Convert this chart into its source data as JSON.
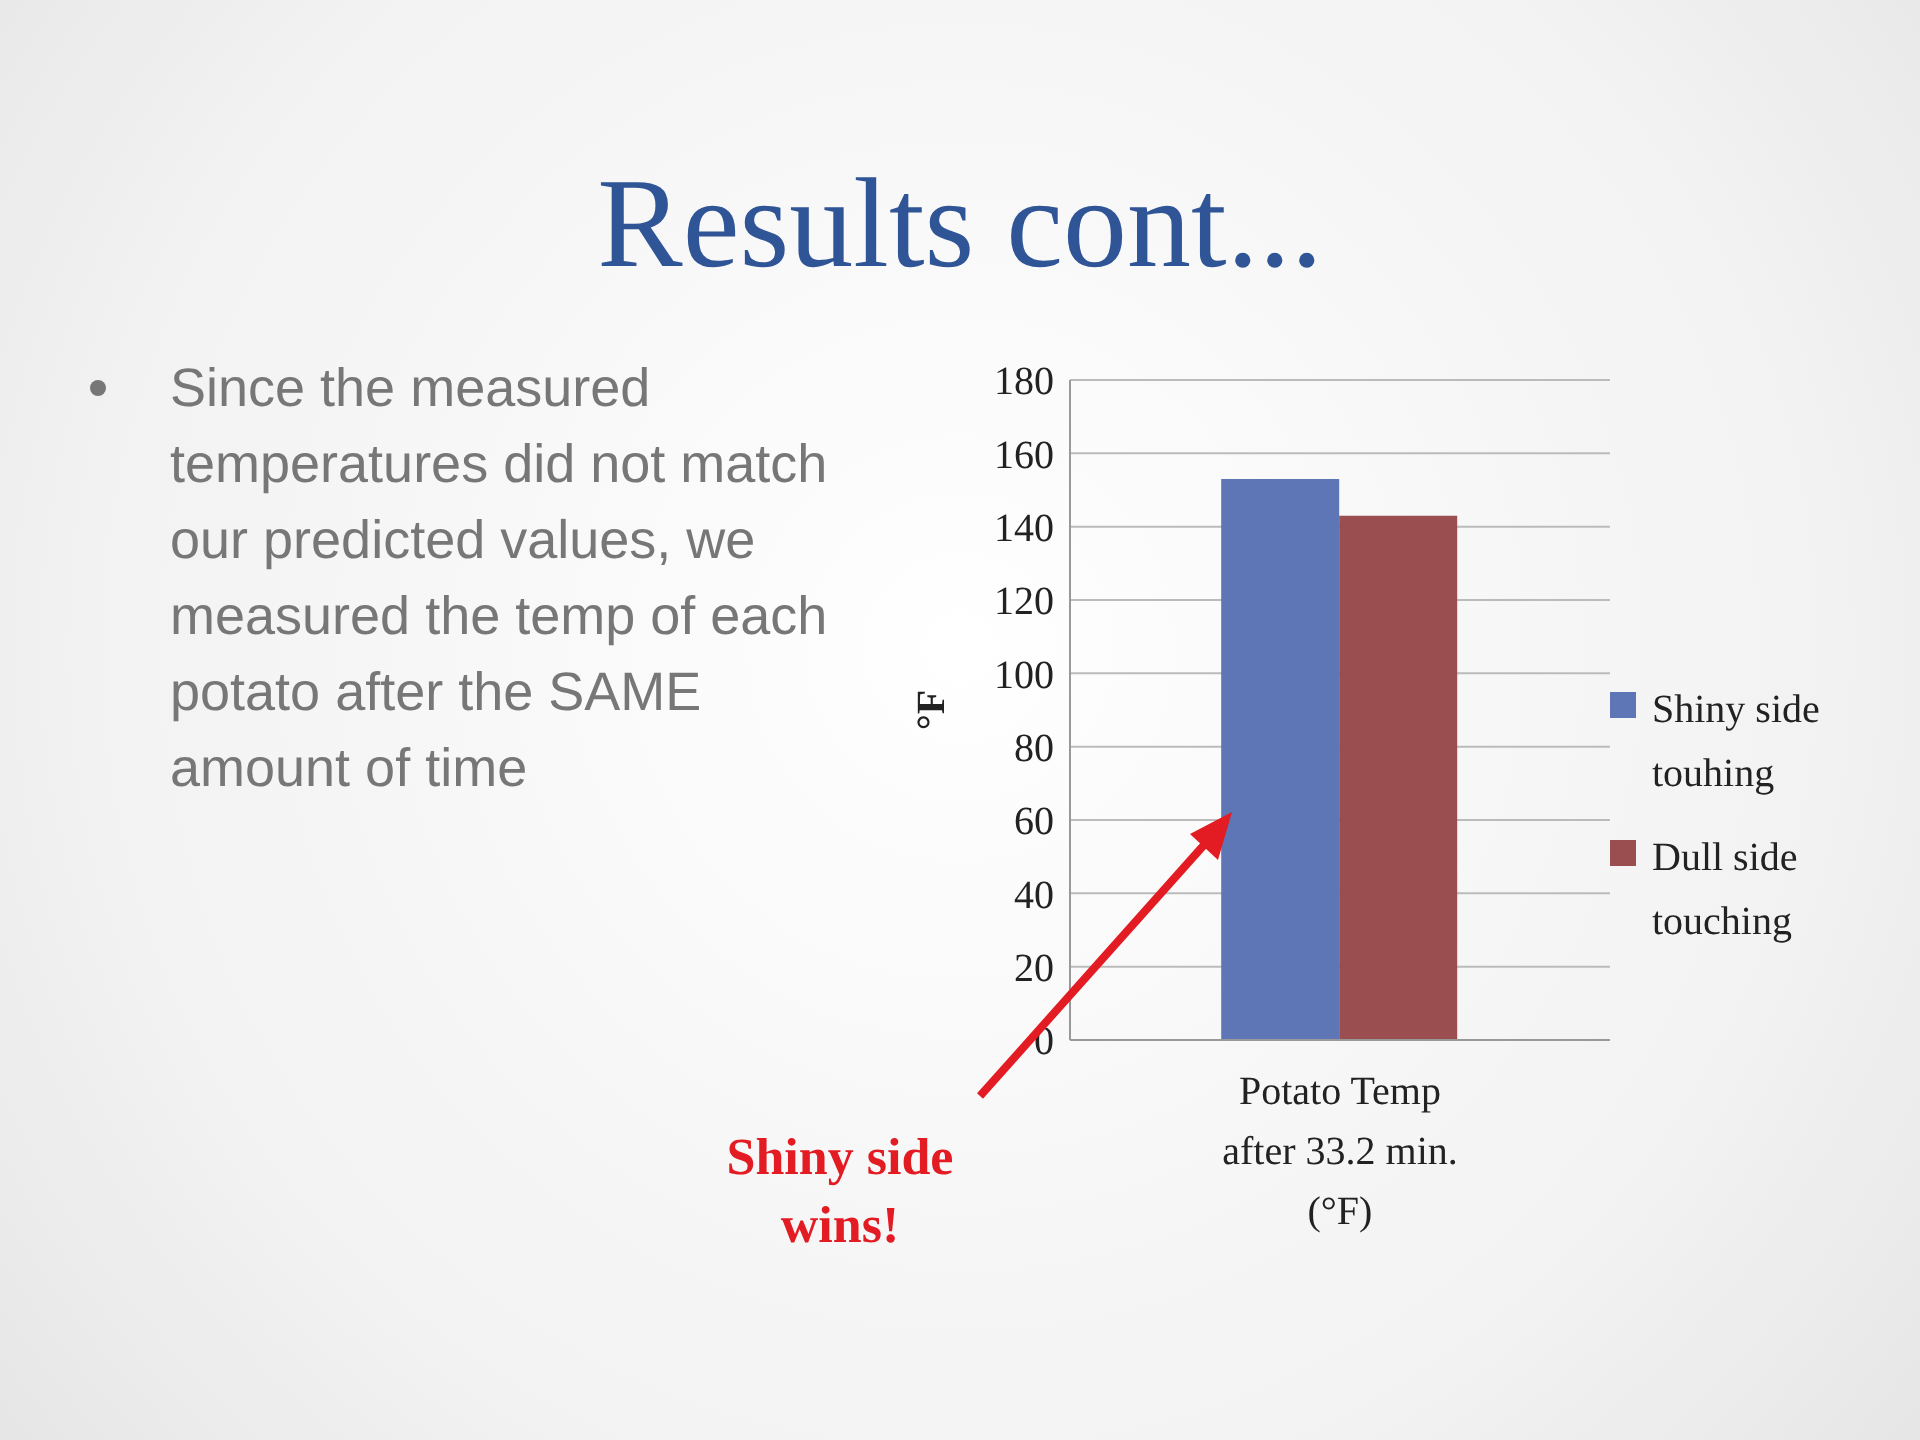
{
  "chart_data": {
    "type": "bar",
    "title": "Results cont...",
    "ylabel": "°F",
    "categories": [
      "Potato Temp after 33.2 min. (°F)"
    ],
    "series": [
      {
        "name": "Shiny side touhing",
        "color": "#5e76b6",
        "values": [
          153
        ]
      },
      {
        "name": "Dull side touching",
        "color": "#9a4e4f",
        "values": [
          143
        ]
      }
    ],
    "ylim": [
      0,
      180
    ],
    "yticks": [
      0,
      20,
      40,
      60,
      80,
      100,
      120,
      140,
      160,
      180
    ],
    "grid": "y",
    "legend": "right",
    "annotations": [
      "Since the measured temperatures did not match our predicted values, we measured the temp of each potato after the SAME amount of time",
      "Shiny side wins!"
    ]
  }
}
